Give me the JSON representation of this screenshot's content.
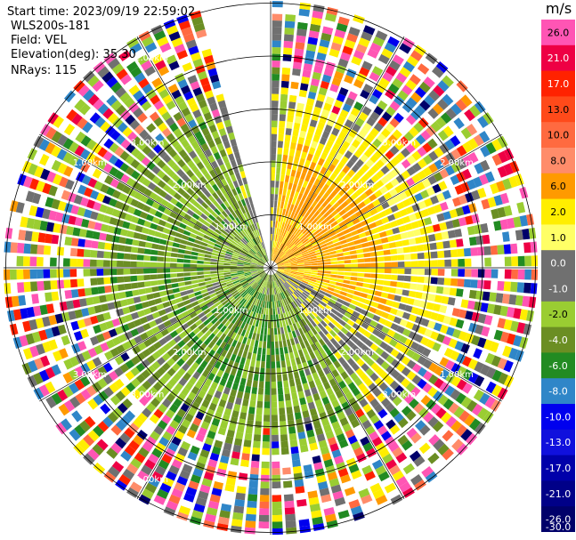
{
  "header": {
    "start_time": "Start time: 2023/09/19 22:59:02",
    "instrument": "WLS200s-181",
    "field": "Field: VEL",
    "elevation": "Elevation(deg): 35.30",
    "nrays": "NRays: 115"
  },
  "chart_data": {
    "type": "ppi-polar-radar",
    "title": "WLS200s-181 Field: VEL",
    "field": "VEL",
    "units": "m/s",
    "nrays": 115,
    "elevation_deg": 35.3,
    "range_rings_km": [
      1.0,
      2.0,
      3.0,
      4.0,
      5.0
    ],
    "range_label_text": [
      "1.00km",
      "2.00km",
      "3.00km",
      "1.00km",
      "2.00km",
      "3.00km",
      "1.00km",
      "2.00km",
      "3.00km",
      "1.00km",
      "2.00km",
      "3.00km",
      "1.00km",
      "2.00km",
      "3.00km",
      "1.00km",
      "2.00km",
      "3.00km"
    ],
    "gap_azimuth_deg": [
      345,
      360
    ],
    "colorbar": {
      "title": "m/s",
      "ticks": [
        "26.0",
        "21.0",
        "17.0",
        "13.0",
        "10.0",
        "8.0",
        "6.0",
        "2.0",
        "1.0",
        "0.0",
        "-1.0",
        "-2.0",
        "-4.0",
        "-6.0",
        "-8.0",
        "-10.0",
        "-13.0",
        "-17.0",
        "-21.0",
        "-26.0",
        "-30.0"
      ],
      "colors": [
        "#ff55b4",
        "#ee0044",
        "#ff2200",
        "#ff4a1a",
        "#ff6a40",
        "#ff8c6a",
        "#ff9a00",
        "#ffee00",
        "#ffff66",
        "#707070",
        "#707070",
        "#9acd32",
        "#6b8e23",
        "#228b22",
        "#2f86c8",
        "#0000ee",
        "#1010dd",
        "#0000aa",
        "#000088",
        "#00006a"
      ]
    },
    "regions": {
      "north_east": "positive velocities 2 to 8 m/s (orange/yellow)",
      "south_west": "negative velocities -1 to -6 m/s (green)",
      "outer_ring": "noisy values across full scale beyond ~3.3 km"
    }
  }
}
